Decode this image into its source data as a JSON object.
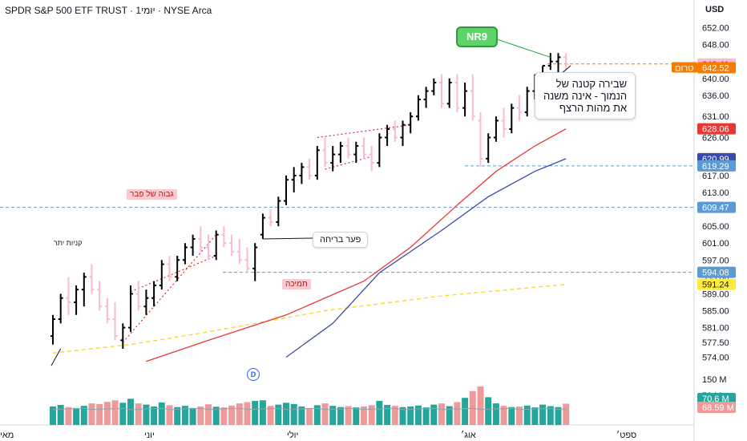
{
  "header": {
    "title": "SPDR S&P 500 ETF TRUST · 1יומי · NYSE Arca",
    "currency": "USD"
  },
  "price_axis": {
    "ticks": [
      "652.00",
      "648.00",
      "644.00",
      "640.00",
      "636.00",
      "631.00",
      "626.00",
      "621.00",
      "617.00",
      "613.00",
      "609.00",
      "605.00",
      "601.00",
      "597.00",
      "593.00",
      "589.00",
      "585.00",
      "581.00",
      "577.50",
      "574.00"
    ],
    "volume_ticks": [
      "150 M",
      "50 M"
    ]
  },
  "time_axis": {
    "labels": [
      "מאי",
      "יוני",
      "יולי",
      "אוג׳",
      "ספט׳"
    ]
  },
  "price_labels": [
    {
      "text": "643.41",
      "value": 643.41,
      "color": "#f8bbd0",
      "text_color": "#b71c1c"
    },
    {
      "text": "642.52",
      "value": 642.52,
      "color": "#f57c00",
      "prefix": "טרום"
    },
    {
      "text": "628.06",
      "value": 628.06,
      "color": "#e53935"
    },
    {
      "text": "620.99",
      "value": 620.99,
      "color": "#3949ab"
    },
    {
      "text": "619.29",
      "value": 619.29,
      "color": "#5b9bd5"
    },
    {
      "text": "609.47",
      "value": 609.47,
      "color": "#5b9bd5"
    },
    {
      "text": "594.08",
      "value": 594.08,
      "color": "#5b9bd5"
    },
    {
      "text": "591.24",
      "value": 591.24,
      "color": "#ffeb3b",
      "text_color": "#131722"
    },
    {
      "text": "70.6 M",
      "value": 70.6,
      "color": "#26a69a",
      "pane": "volume"
    },
    {
      "text": "68.59 M",
      "value": 68.59,
      "color": "#ef9a9a",
      "pane": "volume"
    }
  ],
  "annotations": {
    "nr9": "NR9",
    "main_callout": [
      "שבירה קטנה של",
      "הנמוך - אינה משנה",
      "את מהות הרצף"
    ],
    "breakout_gap": "פער בריחה",
    "support": "תמיכה",
    "high_of_february": "גבוה של פבר",
    "buyers_excess": "קניות יתר",
    "event_marker": "D"
  },
  "colors": {
    "up_bar": "#000000",
    "down_bar": "#f8bbd0",
    "ma_red": "#e53935",
    "ma_blue": "#3949ab",
    "ma_yellow": "#f9d71c",
    "vol_up": "#26a69a",
    "vol_down": "#ef9a9a",
    "dashed_level": "#5b9bd5"
  },
  "chart_data": {
    "type": "ohlc",
    "ylim": [
      572,
      654
    ],
    "bars": [
      {
        "o": 579,
        "h": 584,
        "l": 577,
        "c": 583,
        "v": 60
      },
      {
        "o": 583,
        "h": 589,
        "l": 582,
        "c": 588,
        "v": 65
      },
      {
        "o": 588,
        "h": 593,
        "l": 584,
        "c": 587,
        "v": 58
      },
      {
        "o": 587,
        "h": 591,
        "l": 584,
        "c": 590,
        "v": 55
      },
      {
        "o": 590,
        "h": 594,
        "l": 586,
        "c": 593,
        "v": 62
      },
      {
        "o": 593,
        "h": 596,
        "l": 589,
        "c": 590,
        "v": 70
      },
      {
        "o": 590,
        "h": 592,
        "l": 585,
        "c": 586,
        "v": 68
      },
      {
        "o": 586,
        "h": 588,
        "l": 582,
        "c": 583,
        "v": 75
      },
      {
        "o": 583,
        "h": 587,
        "l": 578,
        "c": 579,
        "v": 80
      },
      {
        "o": 578,
        "h": 582,
        "l": 576,
        "c": 581,
        "v": 72
      },
      {
        "o": 581,
        "h": 591,
        "l": 580,
        "c": 589,
        "v": 85
      },
      {
        "o": 589,
        "h": 592,
        "l": 585,
        "c": 586,
        "v": 70
      },
      {
        "o": 586,
        "h": 590,
        "l": 584,
        "c": 588,
        "v": 66
      },
      {
        "o": 588,
        "h": 592,
        "l": 586,
        "c": 591,
        "v": 60
      },
      {
        "o": 591,
        "h": 597,
        "l": 590,
        "c": 596,
        "v": 73
      },
      {
        "o": 596,
        "h": 598,
        "l": 592,
        "c": 593,
        "v": 64
      },
      {
        "o": 593,
        "h": 598,
        "l": 592,
        "c": 597,
        "v": 58
      },
      {
        "o": 597,
        "h": 601,
        "l": 596,
        "c": 600,
        "v": 62
      },
      {
        "o": 600,
        "h": 603,
        "l": 598,
        "c": 602,
        "v": 55
      },
      {
        "o": 602,
        "h": 605,
        "l": 599,
        "c": 600,
        "v": 60
      },
      {
        "o": 600,
        "h": 603,
        "l": 597,
        "c": 598,
        "v": 67
      },
      {
        "o": 598,
        "h": 604,
        "l": 597,
        "c": 603,
        "v": 59
      },
      {
        "o": 603,
        "h": 605,
        "l": 600,
        "c": 601,
        "v": 57
      },
      {
        "o": 601,
        "h": 603,
        "l": 598,
        "c": 599,
        "v": 63
      },
      {
        "o": 599,
        "h": 602,
        "l": 596,
        "c": 597,
        "v": 70
      },
      {
        "o": 597,
        "h": 600,
        "l": 594,
        "c": 595,
        "v": 74
      },
      {
        "o": 595,
        "h": 601,
        "l": 592,
        "c": 600,
        "v": 78
      },
      {
        "o": 603,
        "h": 608,
        "l": 602,
        "c": 607,
        "v": 80
      },
      {
        "o": 607,
        "h": 609,
        "l": 605,
        "c": 606,
        "v": 62
      },
      {
        "o": 606,
        "h": 612,
        "l": 605,
        "c": 611,
        "v": 66
      },
      {
        "o": 611,
        "h": 617,
        "l": 610,
        "c": 616,
        "v": 72
      },
      {
        "o": 616,
        "h": 619,
        "l": 613,
        "c": 617,
        "v": 68
      },
      {
        "o": 617,
        "h": 620,
        "l": 615,
        "c": 619,
        "v": 60
      },
      {
        "o": 619,
        "h": 621,
        "l": 616,
        "c": 617,
        "v": 55
      },
      {
        "o": 617,
        "h": 624,
        "l": 616,
        "c": 623,
        "v": 64
      },
      {
        "o": 623,
        "h": 626,
        "l": 619,
        "c": 620,
        "v": 70
      },
      {
        "o": 620,
        "h": 624,
        "l": 618,
        "c": 622,
        "v": 62
      },
      {
        "o": 622,
        "h": 625,
        "l": 620,
        "c": 624,
        "v": 58
      },
      {
        "o": 624,
        "h": 626,
        "l": 621,
        "c": 622,
        "v": 61
      },
      {
        "o": 622,
        "h": 625,
        "l": 620,
        "c": 624,
        "v": 57
      },
      {
        "o": 624,
        "h": 626,
        "l": 621,
        "c": 622,
        "v": 60
      },
      {
        "o": 622,
        "h": 624,
        "l": 618,
        "c": 620,
        "v": 64
      },
      {
        "o": 620,
        "h": 627,
        "l": 619,
        "c": 626,
        "v": 78
      },
      {
        "o": 626,
        "h": 629,
        "l": 624,
        "c": 628,
        "v": 65
      },
      {
        "o": 628,
        "h": 630,
        "l": 625,
        "c": 626,
        "v": 62
      },
      {
        "o": 626,
        "h": 630,
        "l": 624,
        "c": 629,
        "v": 58
      },
      {
        "o": 629,
        "h": 632,
        "l": 627,
        "c": 631,
        "v": 60
      },
      {
        "o": 631,
        "h": 636,
        "l": 630,
        "c": 635,
        "v": 63
      },
      {
        "o": 635,
        "h": 638,
        "l": 633,
        "c": 637,
        "v": 57
      },
      {
        "o": 637,
        "h": 640,
        "l": 636,
        "c": 639,
        "v": 66
      },
      {
        "o": 639,
        "h": 641,
        "l": 633,
        "c": 634,
        "v": 70
      },
      {
        "o": 634,
        "h": 640,
        "l": 633,
        "c": 639,
        "v": 61
      },
      {
        "o": 639,
        "h": 641,
        "l": 632,
        "c": 633,
        "v": 74
      },
      {
        "o": 633,
        "h": 639,
        "l": 631,
        "c": 637,
        "v": 88
      },
      {
        "o": 637,
        "h": 641,
        "l": 630,
        "c": 631,
        "v": 110
      },
      {
        "o": 630,
        "h": 632,
        "l": 619,
        "c": 621,
        "v": 125
      },
      {
        "o": 621,
        "h": 627,
        "l": 620,
        "c": 626,
        "v": 90
      },
      {
        "o": 626,
        "h": 631,
        "l": 625,
        "c": 630,
        "v": 70
      },
      {
        "o": 630,
        "h": 633,
        "l": 626,
        "c": 628,
        "v": 62
      },
      {
        "o": 628,
        "h": 634,
        "l": 627,
        "c": 633,
        "v": 58
      },
      {
        "o": 633,
        "h": 636,
        "l": 630,
        "c": 632,
        "v": 60
      },
      {
        "o": 632,
        "h": 638,
        "l": 631,
        "c": 637,
        "v": 63
      },
      {
        "o": 637,
        "h": 641,
        "l": 635,
        "c": 640,
        "v": 57
      },
      {
        "o": 640,
        "h": 643,
        "l": 638,
        "c": 643,
        "v": 66
      },
      {
        "o": 643,
        "h": 646,
        "l": 642,
        "c": 644,
        "v": 61
      },
      {
        "o": 644,
        "h": 646,
        "l": 641,
        "c": 645,
        "v": 58
      },
      {
        "o": 645,
        "h": 646,
        "l": 642,
        "c": 643.41,
        "v": 69
      }
    ],
    "levels": [
      643.41,
      619.29,
      609.47,
      594.08
    ],
    "ma_red": [
      [
        12,
        573
      ],
      [
        20,
        578
      ],
      [
        30,
        584
      ],
      [
        40,
        592
      ],
      [
        46,
        600
      ],
      [
        52,
        610
      ],
      [
        57,
        618
      ],
      [
        62,
        624
      ],
      [
        66,
        628.06
      ]
    ],
    "ma_blue": [
      [
        30,
        574
      ],
      [
        36,
        582
      ],
      [
        42,
        594
      ],
      [
        50,
        604
      ],
      [
        56,
        612
      ],
      [
        62,
        618
      ],
      [
        66,
        620.99
      ]
    ],
    "ma_yellow": [
      [
        0,
        575
      ],
      [
        10,
        577
      ],
      [
        20,
        580
      ],
      [
        35,
        585
      ],
      [
        50,
        588.5
      ],
      [
        66,
        591.24
      ]
    ]
  }
}
